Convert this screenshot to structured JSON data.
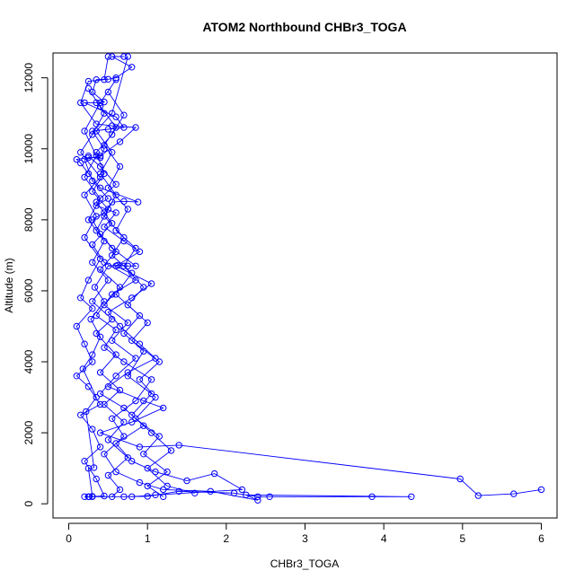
{
  "chart_data": {
    "type": "line",
    "title": "ATOM2 Northbound CHBr3_TOGA",
    "xlabel": "CHBr3_TOGA",
    "ylabel": "Altitude (m)",
    "xlim": [
      -0.2,
      6.2
    ],
    "ylim": [
      -400,
      12700
    ],
    "x_ticks": [
      0,
      1,
      2,
      3,
      4,
      5,
      6
    ],
    "y_ticks": [
      0,
      2000,
      4000,
      6000,
      8000,
      10000,
      12000
    ],
    "grid": false,
    "legend": "none",
    "color": "#0000FF",
    "marker": "open-circle",
    "series": [
      {
        "values": [
          [
            0.2,
            200
          ],
          [
            0.26,
            200
          ],
          [
            0.3,
            210
          ],
          [
            0.25,
            1000
          ],
          [
            0.32,
            1020
          ],
          [
            0.22,
            2600
          ],
          [
            0.35,
            3000
          ],
          [
            0.18,
            3800
          ],
          [
            0.3,
            4200
          ],
          [
            0.4,
            4700
          ],
          [
            0.28,
            5200
          ],
          [
            0.45,
            5700
          ],
          [
            0.33,
            6100
          ],
          [
            0.5,
            6700
          ],
          [
            0.62,
            6720
          ],
          [
            0.75,
            6700
          ],
          [
            0.85,
            6700
          ],
          [
            0.55,
            7200
          ],
          [
            0.4,
            7600
          ],
          [
            0.3,
            8000
          ],
          [
            0.45,
            8200
          ],
          [
            0.55,
            8500
          ],
          [
            0.7,
            8520
          ],
          [
            0.88,
            8500
          ],
          [
            0.4,
            8900
          ],
          [
            0.25,
            9300
          ],
          [
            0.15,
            9600
          ],
          [
            0.1,
            9700
          ],
          [
            0.25,
            9750
          ],
          [
            0.4,
            9750
          ],
          [
            0.45,
            10000
          ],
          [
            0.3,
            10500
          ],
          [
            0.5,
            10550
          ],
          [
            0.7,
            10600
          ],
          [
            0.6,
            10900
          ],
          [
            0.2,
            11300
          ],
          [
            0.35,
            11300
          ],
          [
            0.45,
            11320
          ],
          [
            0.3,
            11600
          ],
          [
            0.35,
            11950
          ],
          [
            0.5,
            11960
          ],
          [
            0.6,
            12000
          ],
          [
            0.8,
            12300
          ],
          [
            0.55,
            12600
          ],
          [
            0.7,
            12600
          ]
        ]
      },
      {
        "values": [
          [
            0.5,
            12600
          ],
          [
            0.45,
            11950
          ],
          [
            0.25,
            11900
          ],
          [
            0.15,
            11300
          ],
          [
            0.35,
            10700
          ],
          [
            0.55,
            10650
          ],
          [
            0.85,
            10600
          ],
          [
            0.65,
            10200
          ],
          [
            0.4,
            9800
          ],
          [
            0.2,
            9700
          ],
          [
            0.3,
            9100
          ],
          [
            0.5,
            8600
          ],
          [
            0.35,
            8400
          ],
          [
            0.6,
            8200
          ],
          [
            0.45,
            7800
          ],
          [
            0.7,
            7400
          ],
          [
            0.9,
            7100
          ],
          [
            0.6,
            6700
          ],
          [
            1.05,
            6200
          ],
          [
            0.8,
            5800
          ],
          [
            0.5,
            5400
          ],
          [
            0.65,
            5000
          ],
          [
            0.9,
            4500
          ],
          [
            1.1,
            4100
          ],
          [
            0.75,
            3700
          ],
          [
            0.5,
            3300
          ],
          [
            0.95,
            2900
          ],
          [
            1.2,
            2700
          ],
          [
            0.8,
            2300
          ],
          [
            0.4,
            2000
          ],
          [
            0.9,
            1600
          ],
          [
            1.4,
            1650
          ],
          [
            4.97,
            700
          ],
          [
            5.2,
            230
          ],
          [
            5.65,
            280
          ],
          [
            6.0,
            400
          ]
        ]
      },
      {
        "values": [
          [
            0.3,
            200
          ],
          [
            0.7,
            200
          ],
          [
            1.0,
            210
          ],
          [
            1.4,
            350
          ],
          [
            2.1,
            300
          ],
          [
            2.4,
            200
          ],
          [
            2.55,
            200
          ],
          [
            3.85,
            200
          ],
          [
            4.35,
            200
          ],
          [
            2.25,
            250
          ],
          [
            2.4,
            100
          ],
          [
            1.8,
            350
          ],
          [
            1.2,
            400
          ],
          [
            0.9,
            600
          ],
          [
            0.6,
            900
          ],
          [
            0.45,
            1400
          ],
          [
            0.7,
            1900
          ],
          [
            0.55,
            2400
          ],
          [
            0.85,
            2900
          ],
          [
            1.05,
            3500
          ],
          [
            0.7,
            4000
          ],
          [
            0.45,
            4400
          ],
          [
            0.6,
            4900
          ],
          [
            0.35,
            5300
          ],
          [
            0.55,
            5900
          ],
          [
            0.85,
            6300
          ],
          [
            0.45,
            6800
          ],
          [
            0.3,
            7300
          ],
          [
            0.55,
            7900
          ],
          [
            0.35,
            8500
          ],
          [
            0.6,
            9000
          ],
          [
            0.4,
            9500
          ],
          [
            0.25,
            9800
          ]
        ]
      },
      {
        "values": [
          [
            0.8,
            200
          ],
          [
            1.1,
            250
          ],
          [
            2.2,
            400
          ],
          [
            1.85,
            850
          ],
          [
            1.5,
            650
          ],
          [
            1.1,
            900
          ],
          [
            0.8,
            1200
          ],
          [
            0.6,
            1700
          ],
          [
            0.95,
            2200
          ],
          [
            0.7,
            2700
          ],
          [
            0.4,
            3100
          ],
          [
            0.6,
            3600
          ],
          [
            0.85,
            4100
          ],
          [
            0.55,
            4600
          ],
          [
            0.75,
            5100
          ],
          [
            0.45,
            5600
          ],
          [
            0.65,
            6100
          ],
          [
            0.4,
            6600
          ],
          [
            0.6,
            7100
          ],
          [
            0.35,
            7700
          ],
          [
            0.5,
            8300
          ],
          [
            0.3,
            8800
          ],
          [
            0.45,
            9300
          ],
          [
            0.35,
            9900
          ],
          [
            0.55,
            10400
          ],
          [
            0.7,
            10950
          ],
          [
            0.5,
            11600
          ]
        ]
      },
      {
        "values": [
          [
            0.25,
            200
          ],
          [
            0.45,
            220
          ],
          [
            0.35,
            700
          ],
          [
            0.2,
            1200
          ],
          [
            0.4,
            1600
          ],
          [
            0.3,
            2100
          ],
          [
            0.15,
            2500
          ],
          [
            0.4,
            2800
          ],
          [
            0.25,
            3300
          ],
          [
            0.1,
            3600
          ],
          [
            0.3,
            4000
          ],
          [
            0.2,
            4500
          ],
          [
            0.1,
            5000
          ],
          [
            0.3,
            5500
          ],
          [
            0.15,
            5800
          ],
          [
            0.25,
            6300
          ],
          [
            0.4,
            6900
          ],
          [
            0.2,
            7500
          ],
          [
            0.35,
            8100
          ],
          [
            0.2,
            8700
          ],
          [
            0.4,
            9200
          ],
          [
            0.15,
            9900
          ],
          [
            0.3,
            10400
          ],
          [
            0.45,
            11000
          ],
          [
            0.25,
            11700
          ]
        ]
      },
      {
        "values": [
          [
            1.2,
            200
          ],
          [
            1.0,
            500
          ],
          [
            1.25,
            900
          ],
          [
            0.95,
            1400
          ],
          [
            1.15,
            1900
          ],
          [
            0.85,
            2400
          ],
          [
            1.1,
            3000
          ],
          [
            0.9,
            3500
          ],
          [
            1.15,
            4000
          ],
          [
            0.8,
            4600
          ],
          [
            1.0,
            5100
          ],
          [
            0.75,
            5600
          ],
          [
            0.95,
            6100
          ],
          [
            0.7,
            6700
          ],
          [
            0.85,
            7200
          ],
          [
            0.6,
            7700
          ],
          [
            0.75,
            8300
          ],
          [
            0.5,
            8900
          ],
          [
            0.65,
            9500
          ],
          [
            0.45,
            10100
          ],
          [
            0.6,
            10600
          ],
          [
            0.4,
            11200
          ]
        ]
      },
      {
        "values": [
          [
            0.55,
            200
          ],
          [
            0.65,
            400
          ],
          [
            0.5,
            800
          ],
          [
            0.75,
            1300
          ],
          [
            0.5,
            1800
          ],
          [
            0.7,
            2300
          ],
          [
            0.45,
            2800
          ],
          [
            0.65,
            3200
          ],
          [
            0.4,
            3700
          ],
          [
            0.6,
            4200
          ],
          [
            0.35,
            4800
          ],
          [
            0.55,
            5200
          ],
          [
            0.3,
            5700
          ],
          [
            0.5,
            6300
          ],
          [
            0.3,
            6800
          ],
          [
            0.45,
            7400
          ],
          [
            0.25,
            8000
          ],
          [
            0.4,
            8600
          ],
          [
            0.2,
            9200
          ],
          [
            0.35,
            9800
          ],
          [
            0.2,
            10500
          ],
          [
            0.4,
            11300
          ],
          [
            0.6,
            11950
          ]
        ]
      },
      {
        "values": [
          [
            1.6,
            300
          ],
          [
            1.25,
            500
          ],
          [
            1.0,
            1000
          ],
          [
            1.3,
            1500
          ],
          [
            1.05,
            2000
          ],
          [
            0.8,
            2500
          ],
          [
            1.05,
            3100
          ],
          [
            0.75,
            3600
          ],
          [
            0.95,
            4300
          ],
          [
            0.7,
            4800
          ],
          [
            0.9,
            5300
          ],
          [
            0.6,
            5900
          ],
          [
            0.8,
            6500
          ],
          [
            0.55,
            7000
          ],
          [
            0.7,
            7500
          ],
          [
            0.45,
            8100
          ],
          [
            0.6,
            8700
          ],
          [
            0.4,
            9300
          ],
          [
            0.55,
            9900
          ],
          [
            0.35,
            10500
          ],
          [
            0.55,
            11000
          ],
          [
            0.75,
            12600
          ]
        ]
      }
    ]
  }
}
